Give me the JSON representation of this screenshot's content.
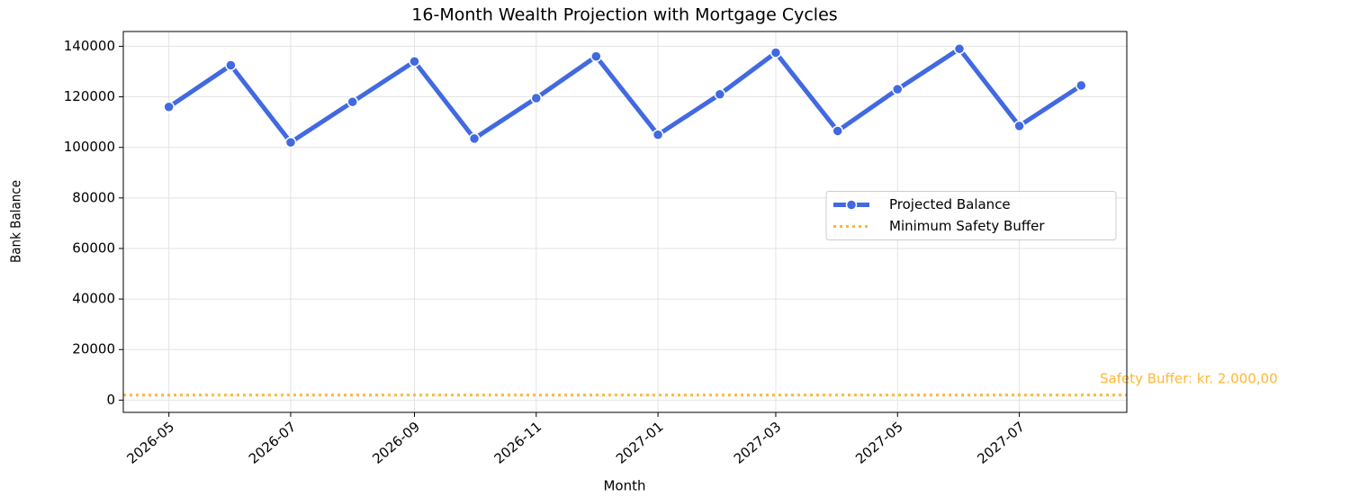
{
  "chart_data": {
    "type": "line",
    "title": "16-Month Wealth Projection with Mortgage Cycles",
    "xlabel": "Month",
    "ylabel": "Bank Balance",
    "x": [
      "2026-05",
      "2026-06",
      "2026-07",
      "2026-08",
      "2026-09",
      "2026-10",
      "2026-11",
      "2026-12",
      "2027-01",
      "2027-02",
      "2027-03",
      "2027-04",
      "2027-05",
      "2027-06",
      "2027-07",
      "2027-08"
    ],
    "series": [
      {
        "name": "Projected Balance",
        "color": "#4169e1",
        "values": [
          116000,
          132500,
          102000,
          118000,
          134000,
          103500,
          119500,
          136000,
          105000,
          121000,
          137500,
          106500,
          123000,
          139000,
          108500,
          124500
        ]
      }
    ],
    "reference_line": {
      "name": "Minimum Safety Buffer",
      "value": 2000,
      "color": "#ffb732"
    },
    "annotation": "Safety Buffer: kr. 2.000,00",
    "ylim": [
      -4850,
      145850
    ],
    "yticks": [
      0,
      20000,
      40000,
      60000,
      80000,
      100000,
      120000,
      140000
    ],
    "xticks": [
      "2026-05",
      "2026-07",
      "2026-09",
      "2026-11",
      "2027-01",
      "2027-03",
      "2027-05",
      "2027-07"
    ],
    "grid": true,
    "legend": "center right"
  }
}
